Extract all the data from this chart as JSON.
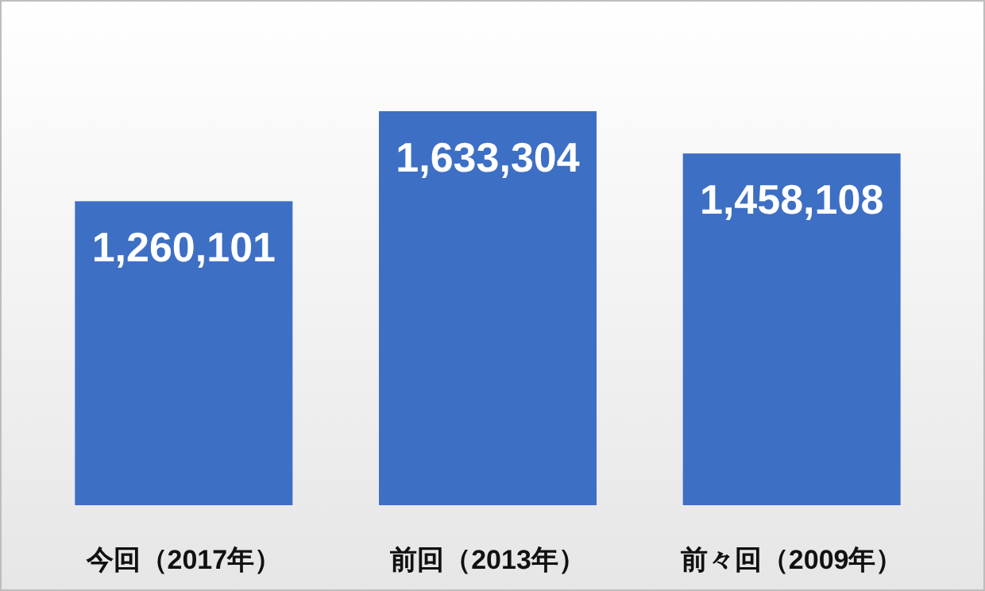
{
  "chart_data": {
    "type": "bar",
    "categories": [
      "今回（2017年）",
      "前回（2013年）",
      "前々回（2009年）"
    ],
    "values": [
      1260101,
      1633304,
      1458108
    ],
    "value_labels": [
      "1,260,101",
      "1,633,304",
      "1,458,108"
    ],
    "color": "#3d6fc4"
  }
}
